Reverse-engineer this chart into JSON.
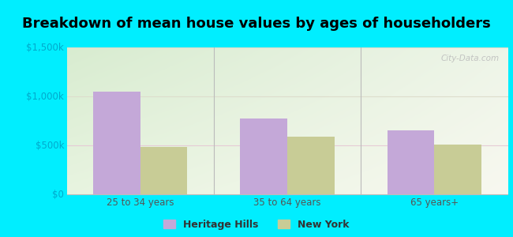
{
  "title": "Breakdown of mean house values by ages of householders",
  "categories": [
    "25 to 34 years",
    "35 to 64 years",
    "65 years+"
  ],
  "heritage_hills": [
    1050000,
    775000,
    650000
  ],
  "new_york": [
    480000,
    590000,
    510000
  ],
  "bar_color_hh": "#c4a8d8",
  "bar_color_ny": "#c8cc96",
  "ylim": [
    0,
    1500000
  ],
  "yticks": [
    0,
    500000,
    1000000,
    1500000
  ],
  "ytick_labels": [
    "$0",
    "$500k",
    "$1,000k",
    "$1,500k"
  ],
  "bg_outer": "#00eeff",
  "bg_plot_tl": "#d8ecd0",
  "bg_plot_tr": "#e8f4e0",
  "bg_plot_br": "#f8f8f0",
  "legend_hh": "Heritage Hills",
  "legend_ny": "New York",
  "title_fontsize": 13,
  "bar_width": 0.32,
  "watermark": "City-Data.com",
  "separator_color": "#bbbbbb",
  "grid_color": "#e8e8d8",
  "tick_color": "#00ccdd",
  "spine_color": "#bbbbbb"
}
